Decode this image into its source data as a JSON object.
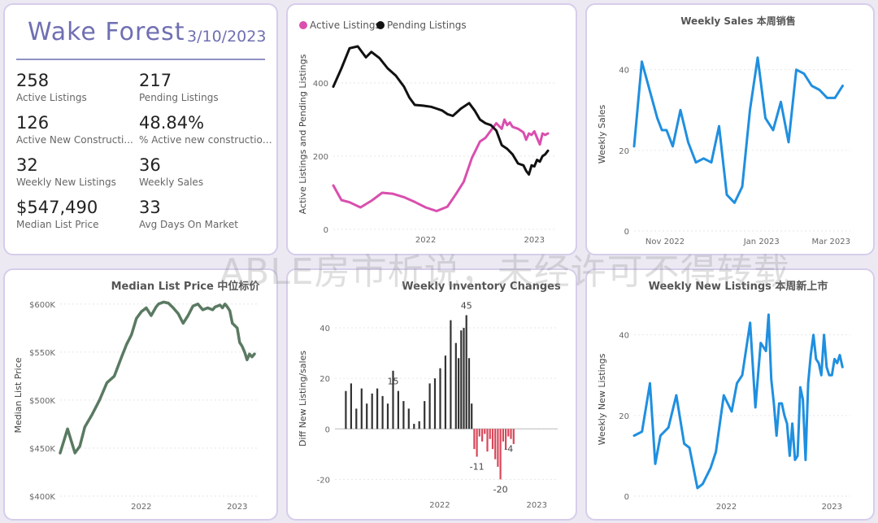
{
  "kpi": {
    "city": "Wake Forest",
    "date": "3/10/2023",
    "items": [
      {
        "value": "258",
        "label": "Active Listings"
      },
      {
        "value": "217",
        "label": "Pending Listings"
      },
      {
        "value": "126",
        "label": "Active New Constructi..."
      },
      {
        "value": "48.84%",
        "label": "% Active new constructions"
      },
      {
        "value": "32",
        "label": "Weekly New Listings"
      },
      {
        "value": "36",
        "label": "Weekly Sales"
      },
      {
        "value": "$547,490",
        "label": "Median List Price"
      },
      {
        "value": "33",
        "label": "Avg Days On Market"
      }
    ]
  },
  "colors": {
    "blue": "#1f8fe0",
    "pink": "#d94fae",
    "black": "#111111",
    "green": "#5a7a62",
    "red": "#d9475a",
    "dark": "#333333",
    "accent": "#6f6fb3"
  },
  "watermark": "ABLE房市析说，未经许可不得转载",
  "chart_data": [
    {
      "type": "line",
      "title": "",
      "ylabel": "Active Listings and Pending Listings",
      "xlabel": "",
      "ylim": [
        0,
        520
      ],
      "yticks": [
        0,
        200,
        400
      ],
      "xlim": [
        0,
        82
      ],
      "xticks": [
        {
          "x": 34,
          "label": "2022"
        },
        {
          "x": 74,
          "label": "2023"
        }
      ],
      "legend": [
        "Active Listings",
        "Pending Listings"
      ],
      "series": [
        {
          "name": "Active Listings",
          "color": "pink",
          "x": [
            0,
            3,
            6,
            10,
            14,
            18,
            22,
            26,
            30,
            34,
            38,
            42,
            45,
            48,
            51,
            54,
            56,
            58,
            60,
            62,
            63,
            64,
            65,
            66,
            68,
            70,
            71,
            72,
            73,
            74,
            75,
            76,
            77,
            78,
            79
          ],
          "y": [
            120,
            80,
            74,
            60,
            78,
            100,
            97,
            88,
            75,
            60,
            50,
            62,
            95,
            130,
            195,
            240,
            250,
            270,
            290,
            275,
            300,
            285,
            292,
            280,
            275,
            265,
            245,
            262,
            258,
            268,
            250,
            232,
            262,
            258,
            262
          ]
        },
        {
          "name": "Pending Listings",
          "color": "black",
          "x": [
            0,
            3,
            6,
            9,
            12,
            14,
            17,
            20,
            23,
            26,
            28,
            30,
            33,
            36,
            38,
            40,
            42,
            44,
            47,
            50,
            52,
            54,
            56,
            58,
            60,
            62,
            64,
            66,
            68,
            70,
            71,
            72,
            73,
            74,
            75,
            76,
            77,
            78,
            79
          ],
          "y": [
            390,
            440,
            495,
            500,
            470,
            485,
            468,
            440,
            420,
            390,
            360,
            340,
            338,
            335,
            330,
            325,
            315,
            310,
            330,
            345,
            325,
            300,
            290,
            285,
            270,
            230,
            220,
            205,
            180,
            175,
            160,
            150,
            175,
            172,
            190,
            185,
            200,
            205,
            215
          ]
        }
      ]
    },
    {
      "type": "line",
      "title": "Weekly Sales 本周销售",
      "ylabel": "Weekly Sales",
      "xlabel": "",
      "ylim": [
        0,
        48
      ],
      "yticks": [
        0,
        20,
        40
      ],
      "xlim": [
        0,
        28
      ],
      "xticks": [
        {
          "x": 4,
          "label": "Nov 2022"
        },
        {
          "x": 16.5,
          "label": "Jan 2023"
        },
        {
          "x": 25.5,
          "label": "Mar 2023"
        }
      ],
      "series": [
        {
          "name": "Weekly Sales",
          "color": "blue",
          "x": [
            0,
            1,
            2,
            3,
            3.6,
            4.2,
            5,
            6,
            7,
            8,
            9,
            10,
            11,
            12,
            13,
            14,
            15,
            16,
            17,
            18,
            19,
            20,
            21,
            22,
            23,
            24,
            25,
            26,
            27
          ],
          "y": [
            21,
            42,
            35,
            28,
            25,
            25,
            21,
            30,
            22,
            17,
            18,
            17,
            26,
            9,
            7,
            11,
            30,
            43,
            28,
            25,
            32,
            22,
            40,
            39,
            36,
            35,
            33,
            33,
            36
          ]
        }
      ]
    },
    {
      "type": "line",
      "title": "Median List Price  中位标价",
      "ylabel": "Median List Price",
      "xlabel": "",
      "ylim": [
        400000,
        610000
      ],
      "yticks": [
        {
          "v": 400000,
          "label": "$400K"
        },
        {
          "v": 450000,
          "label": "$450K"
        },
        {
          "v": 500000,
          "label": "$500K"
        },
        {
          "v": 550000,
          "label": "$550K"
        },
        {
          "v": 600000,
          "label": "$600K"
        }
      ],
      "xlim": [
        0,
        80
      ],
      "xticks": [
        {
          "x": 33,
          "label": "2022"
        },
        {
          "x": 72,
          "label": "2023"
        }
      ],
      "series": [
        {
          "name": "Median List Price",
          "color": "green",
          "x": [
            0,
            3,
            6,
            8,
            10,
            13,
            16,
            19,
            22,
            25,
            27,
            29,
            31,
            33,
            35,
            37,
            39,
            40,
            42,
            44,
            46,
            48,
            50,
            52,
            54,
            56,
            58,
            60,
            62,
            63,
            64,
            65,
            66,
            67,
            68,
            69,
            70,
            72,
            73,
            74,
            75,
            76,
            77,
            78,
            79
          ],
          "y": [
            445000,
            470000,
            445000,
            452000,
            472000,
            485000,
            500000,
            518000,
            525000,
            545000,
            558000,
            568000,
            585000,
            592000,
            596000,
            588000,
            597000,
            600000,
            602000,
            601000,
            596000,
            590000,
            580000,
            588000,
            598000,
            600000,
            594000,
            596000,
            594000,
            597000,
            598000,
            599000,
            596000,
            600000,
            597000,
            593000,
            580000,
            575000,
            560000,
            556000,
            550000,
            542000,
            548000,
            545000,
            548000
          ]
        }
      ]
    },
    {
      "type": "bar",
      "title": "Weekly Inventory Changes",
      "ylabel": "Diff New Listing/sales",
      "xlabel": "",
      "ylim": [
        -26,
        50
      ],
      "yticks": [
        -20,
        0,
        20,
        40
      ],
      "xlim": [
        -2,
        83
      ],
      "xticks": [
        {
          "x": 38,
          "label": "2022"
        },
        {
          "x": 75,
          "label": "2023"
        }
      ],
      "data_labels": [
        {
          "i": 9,
          "text": "15"
        },
        {
          "i": 53,
          "text": "45"
        },
        {
          "i": 59,
          "text": "-11"
        },
        {
          "i": 65,
          "text": "-20"
        },
        {
          "i": 69,
          "text": "-4"
        }
      ],
      "categories_count": 72,
      "values": [
        15,
        18,
        8,
        16,
        10,
        14,
        16,
        13,
        10,
        23,
        15,
        11,
        8,
        2,
        3,
        11,
        18,
        20,
        24,
        29,
        43,
        34,
        28,
        39,
        40,
        45,
        28,
        10,
        -8,
        -11,
        -3,
        -5,
        -2,
        -9,
        -4,
        -8,
        -12,
        -15,
        -20,
        -5,
        -8,
        -3,
        -4,
        -6
      ],
      "x": [
        0,
        2,
        4,
        6,
        8,
        10,
        12,
        14,
        16,
        18,
        20,
        22,
        24,
        26,
        28,
        30,
        32,
        34,
        36,
        38,
        40,
        42,
        43,
        44,
        45,
        46,
        47,
        48,
        49,
        50,
        51,
        52,
        53,
        54,
        55,
        56,
        57,
        58,
        59,
        60,
        61,
        62,
        63,
        64
      ],
      "shift": 7
    },
    {
      "type": "line",
      "title": "Weekly New Listings  本周新上市",
      "ylabel": "Weekly New Listings",
      "xlabel": "",
      "ylim": [
        0,
        48
      ],
      "yticks": [
        0,
        20,
        40
      ],
      "xlim": [
        0,
        82
      ],
      "xticks": [
        {
          "x": 35,
          "label": "2022"
        },
        {
          "x": 75,
          "label": "2023"
        }
      ],
      "series": [
        {
          "name": "Weekly New Listings",
          "color": "blue",
          "x": [
            0,
            3,
            6,
            8,
            10,
            13,
            16,
            19,
            21,
            24,
            26,
            29,
            31,
            34,
            37,
            39,
            41,
            44,
            46,
            48,
            50,
            51,
            52,
            53,
            54,
            55,
            56,
            57,
            58,
            59,
            60,
            61,
            62,
            63,
            64,
            65,
            66,
            67,
            68,
            69,
            70,
            71,
            72,
            73,
            74,
            75,
            76,
            77,
            78,
            79
          ],
          "y": [
            15,
            16,
            28,
            8,
            15,
            17,
            25,
            13,
            12,
            2,
            3,
            7,
            11,
            25,
            21,
            28,
            30,
            43,
            22,
            38,
            36,
            45,
            29,
            23,
            15,
            23,
            23,
            20,
            18,
            10,
            18,
            9,
            10,
            27,
            24,
            9,
            28,
            35,
            40,
            34,
            33,
            30,
            40,
            32,
            30,
            30,
            34,
            33,
            35,
            32
          ]
        }
      ]
    }
  ]
}
